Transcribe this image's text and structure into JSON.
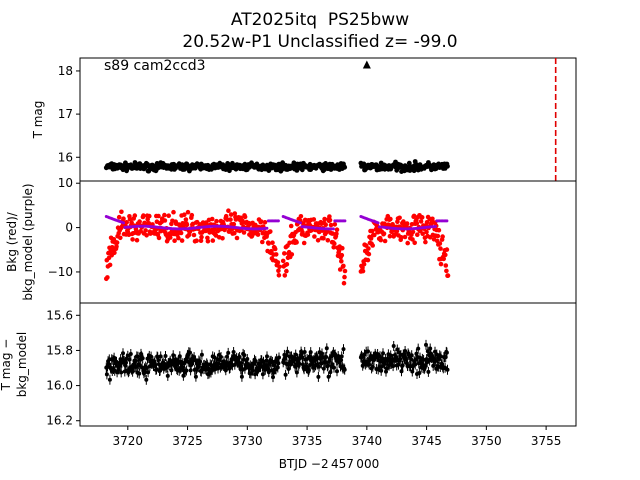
{
  "title_line1": "AT2025itq  PS25bww",
  "title_line2": "20.52w-P1 Unclassified z= -99.0",
  "annotation": "s89 cam2ccd3",
  "chart_data": [
    {
      "type": "scatter",
      "panel": "top",
      "ylabel": "T mag",
      "ylim": [
        18.3,
        15.45
      ],
      "yinverted": true,
      "yticks": [
        "16",
        "17",
        "18"
      ],
      "segments": [
        {
          "x": [
            3718.2,
            3738.2
          ],
          "y_center": 15.78,
          "y_spread": 0.12,
          "color": "#000000"
        },
        {
          "x": [
            3739.5,
            3746.8
          ],
          "y_center": 15.78,
          "y_spread": 0.14,
          "color": "#000000"
        }
      ],
      "marker_triangle": {
        "x": 3740.0,
        "y": 18.15
      },
      "vertical_line": {
        "x": 3755.8,
        "color": "#e00000",
        "style": "dashed"
      }
    },
    {
      "type": "scatter",
      "panel": "middle",
      "ylabel": "Bkg (red)/\nbkg_model (purple)",
      "ylim": [
        -17,
        10.5
      ],
      "yticks": [
        "10",
        "0",
        "−10"
      ],
      "series": [
        {
          "name": "Bkg",
          "color": "#ff0000",
          "description_range": [
            -16,
            10
          ]
        },
        {
          "name": "bkg_model",
          "color": "#9400d3"
        }
      ]
    },
    {
      "type": "scatter",
      "panel": "bottom",
      "ylabel": "T mag −\nbkg_model",
      "ylim": [
        16.23,
        15.53
      ],
      "yinverted": true,
      "yticks": [
        "15.6",
        "15.8",
        "16.0",
        "16.2"
      ],
      "segments": [
        {
          "x": [
            3718.2,
            3732.7
          ],
          "y_center": 15.88,
          "y_spread": 0.1
        },
        {
          "x": [
            3733.0,
            3738.2
          ],
          "y_center": 15.86,
          "y_spread": 0.1
        },
        {
          "x": [
            3739.5,
            3746.8
          ],
          "y_center": 15.86,
          "y_spread": 0.1
        }
      ]
    }
  ],
  "xaxis": {
    "xlabel": "BTJD −2 457 000",
    "xlim": [
      3716.0,
      3757.5
    ],
    "xticks": [
      "3720",
      "3725",
      "3730",
      "3735",
      "3740",
      "3745",
      "3750",
      "3755"
    ],
    "xtick_values": [
      3720,
      3725,
      3730,
      3735,
      3740,
      3745,
      3750,
      3755
    ]
  }
}
